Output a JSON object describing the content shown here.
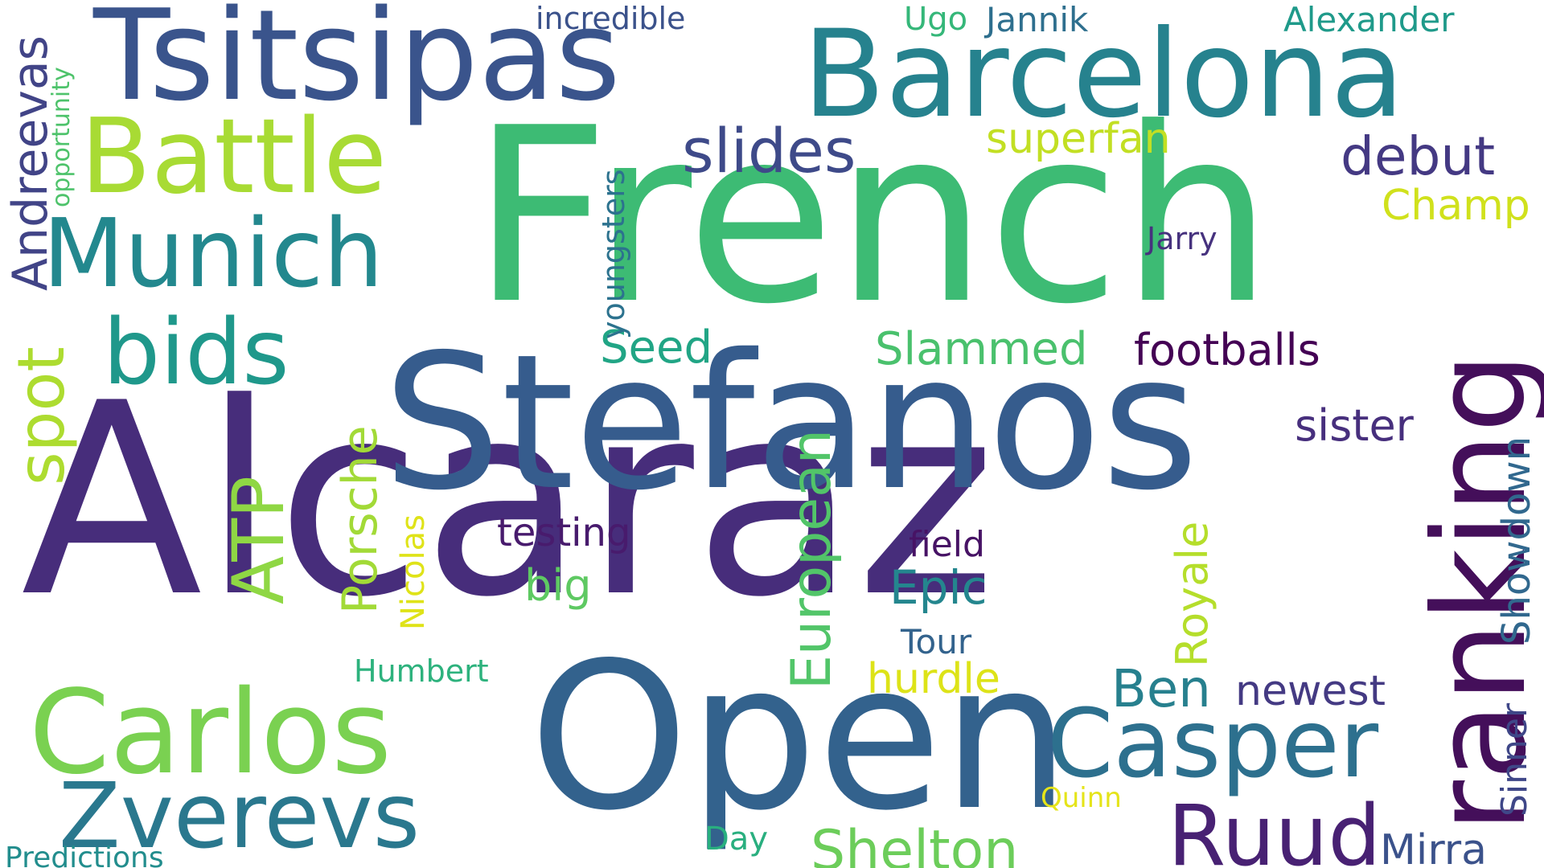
{
  "words": {
    "alcaraz": {
      "text": "Alcaraz",
      "color": "#472d7b"
    },
    "french": {
      "text": "French",
      "color": "#3dbb74"
    },
    "open": {
      "text": "Open",
      "color": "#33628d"
    },
    "stefanos": {
      "text": "Stefanos",
      "color": "#365c8d"
    },
    "tsitsipas": {
      "text": "Tsitsipas",
      "color": "#3a548c"
    },
    "barcelona": {
      "text": "Barcelona",
      "color": "#26828e"
    },
    "ranking": {
      "text": "ranking",
      "color": "#440f5a"
    },
    "carlos": {
      "text": "Carlos",
      "color": "#7ad151"
    },
    "battle": {
      "text": "Battle",
      "color": "#a8db34"
    },
    "munich": {
      "text": "Munich",
      "color": "#23888e"
    },
    "bids": {
      "text": "bids",
      "color": "#1f988b"
    },
    "zverevs": {
      "text": "Zverevs",
      "color": "#2a788e"
    },
    "casper": {
      "text": "Casper",
      "color": "#2d708e"
    },
    "ruud": {
      "text": "Ruud",
      "color": "#482173"
    },
    "slides": {
      "text": "slides",
      "color": "#3e4a89"
    },
    "debut": {
      "text": "debut",
      "color": "#443983"
    },
    "shelton": {
      "text": "Shelton",
      "color": "#6ccd5a"
    },
    "superfan": {
      "text": "superfan",
      "color": "#c2df23"
    },
    "champ": {
      "text": "Champ",
      "color": "#d0e11c"
    },
    "alexander": {
      "text": "Alexander",
      "color": "#1f9a8a"
    },
    "jannik": {
      "text": "Jannik",
      "color": "#2e6f8e"
    },
    "ugo": {
      "text": "Ugo",
      "color": "#35b779"
    },
    "incredible": {
      "text": "incredible",
      "color": "#3b528b"
    },
    "jarry": {
      "text": "Jarry",
      "color": "#46327e"
    },
    "footballs": {
      "text": "footballs",
      "color": "#440154"
    },
    "slammed": {
      "text": "Slammed",
      "color": "#4ac16d"
    },
    "seed": {
      "text": "Seed",
      "color": "#21a585"
    },
    "sister": {
      "text": "sister",
      "color": "#472f7d"
    },
    "testing": {
      "text": "testing",
      "color": "#481b6d"
    },
    "field": {
      "text": "field",
      "color": "#471365"
    },
    "epic": {
      "text": "Epic",
      "color": "#24868e"
    },
    "big": {
      "text": "big",
      "color": "#5ec962"
    },
    "tour": {
      "text": "Tour",
      "color": "#33638d"
    },
    "hurdle": {
      "text": "hurdle",
      "color": "#dde318"
    },
    "ben": {
      "text": "Ben",
      "color": "#27808e"
    },
    "newest": {
      "text": "newest",
      "color": "#443a83"
    },
    "mirra": {
      "text": "Mirra",
      "color": "#3b528b"
    },
    "quinn": {
      "text": "Quinn",
      "color": "#e5e419"
    },
    "day": {
      "text": "Day",
      "color": "#29af7f"
    },
    "humbert": {
      "text": "Humbert",
      "color": "#2db27d"
    },
    "predictions": {
      "text": "Predictions",
      "color": "#228d8d"
    },
    "andreevas": {
      "text": "Andreevas",
      "color": "#414487"
    },
    "opportunity": {
      "text": "opportunity",
      "color": "#4ec36b"
    },
    "spot": {
      "text": "spot",
      "color": "#addc30"
    },
    "atp": {
      "text": "ATP",
      "color": "#8fd744"
    },
    "porsche": {
      "text": "Porsche",
      "color": "#a2da37"
    },
    "nicolas": {
      "text": "Nicolas",
      "color": "#dfe318"
    },
    "youngsters": {
      "text": "youngsters",
      "color": "#2c728e"
    },
    "european": {
      "text": "European",
      "color": "#52c569"
    },
    "royale": {
      "text": "Royale",
      "color": "#b5de2b"
    },
    "showdown": {
      "text": "Showdown",
      "color": "#31688e"
    },
    "sinner": {
      "text": "Sinner",
      "color": "#3f4788"
    }
  }
}
